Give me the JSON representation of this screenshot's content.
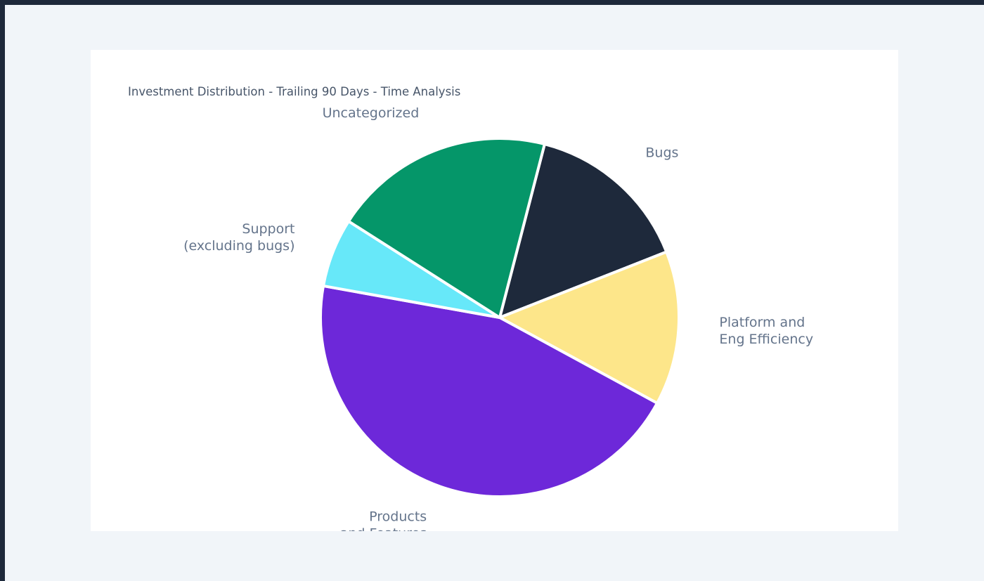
{
  "chart_data": {
    "type": "pie",
    "title": "Investment Distribution - Trailing 90 Days - Time Analysis",
    "slices": [
      {
        "label": [
          "Bugs"
        ],
        "value": 15.0,
        "color": "#1e293b"
      },
      {
        "label": [
          "Platform and",
          "Eng Efficiency"
        ],
        "value": 13.9,
        "color": "#fde68a"
      },
      {
        "label": [
          "Products",
          "and Features"
        ],
        "value": 44.9,
        "color": "#6d28d9"
      },
      {
        "label": [
          "Support",
          "(excluding bugs)"
        ],
        "value": 6.2,
        "color": "#67e8f9"
      },
      {
        "label": [
          "Uncategorized"
        ],
        "value": 20.0,
        "color": "#059669"
      }
    ],
    "start_angle_deg": 14.5,
    "direction": "clockwise",
    "legend": "none",
    "slice_border_color": "#ffffff"
  }
}
